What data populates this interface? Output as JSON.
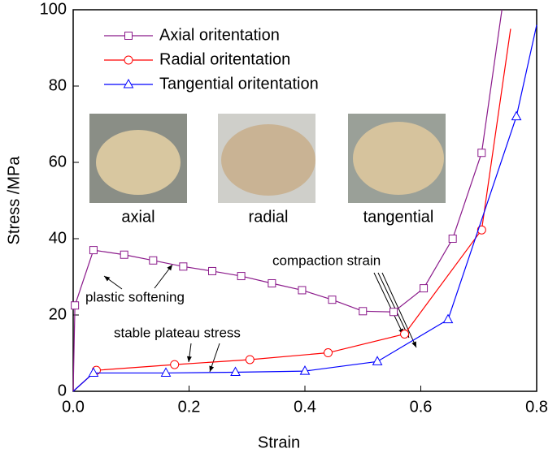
{
  "chart_data": {
    "type": "line",
    "xlabel": "Strain",
    "ylabel": "Stress /MPa",
    "xlim": [
      0,
      0.8
    ],
    "ylim": [
      0,
      100
    ],
    "xticks": [
      {
        "value": 0,
        "label": "0.0"
      },
      {
        "value": 0.2,
        "label": "0.2"
      },
      {
        "value": 0.4,
        "label": "0.4"
      },
      {
        "value": 0.6,
        "label": "0.6"
      },
      {
        "value": 0.8,
        "label": "0.8"
      }
    ],
    "yticks": [
      0,
      20,
      40,
      60,
      80,
      100
    ],
    "series": [
      {
        "name": "Axial oritentation",
        "color": "#8b1a8b",
        "marker": "square",
        "x": [
          0,
          0.003,
          0.035,
          0.088,
          0.138,
          0.19,
          0.24,
          0.29,
          0.343,
          0.395,
          0.447,
          0.5,
          0.553,
          0.605,
          0.655,
          0.705,
          0.74
        ],
        "values": [
          0,
          22.5,
          37,
          35.8,
          34.3,
          32.7,
          31.5,
          30.2,
          28.3,
          26.5,
          24,
          21,
          20.8,
          27,
          40,
          62.5,
          100
        ]
      },
      {
        "name": "Radial oritentation",
        "color": "#ff0000",
        "marker": "circle",
        "x": [
          0,
          0.04,
          0.175,
          0.305,
          0.44,
          0.572,
          0.705,
          0.755
        ],
        "values": [
          0,
          5.5,
          7,
          8.3,
          10.1,
          15,
          42.3,
          95
        ]
      },
      {
        "name": "Tangential oritentation",
        "color": "#0000ff",
        "marker": "triangle",
        "x": [
          0,
          0.035,
          0.16,
          0.28,
          0.4,
          0.525,
          0.647,
          0.765,
          0.8
        ],
        "values": [
          0,
          4.8,
          4.8,
          5,
          5.3,
          7.8,
          18.8,
          72,
          96
        ]
      }
    ],
    "images": [
      "axial",
      "radial",
      "tangential"
    ],
    "annotations": [
      "plastic softening",
      "stable plateau stress",
      "compaction strain"
    ]
  }
}
